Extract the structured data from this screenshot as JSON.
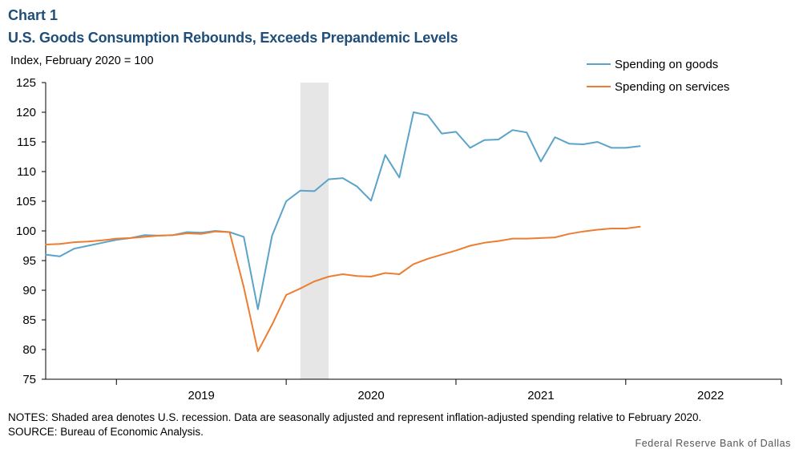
{
  "header": {
    "chart_label": "Chart 1",
    "title": "U.S. Goods Consumption Rebounds, Exceeds Prepandemic Levels"
  },
  "footer": {
    "notes": "NOTES: Shaded area denotes U.S. recession. Data are seasonally adjusted and represent inflation-adjusted spending relative to February 2020.",
    "source": "SOURCE: Bureau of Economic Analysis.",
    "credit": "Federal Reserve Bank of Dallas"
  },
  "chart_data": {
    "type": "line",
    "ylabel": "Index,  February 2020 = 100",
    "ylim": [
      75,
      125
    ],
    "yticks": [
      75,
      80,
      85,
      90,
      95,
      100,
      105,
      110,
      115,
      120,
      125
    ],
    "x_start": "2018-08",
    "x_end": "2022-12",
    "year_labels": [
      "2019",
      "2020",
      "2021",
      "2022"
    ],
    "grid": false,
    "legend_position": "top-right",
    "recession": {
      "start": "2020-02",
      "end": "2020-04"
    },
    "colors": {
      "goods": "#5ba3c9",
      "services": "#ed7d31",
      "recession": "#e6e6e6"
    },
    "series": [
      {
        "key": "goods",
        "name": "Spending on goods",
        "values": [
          96.0,
          95.7,
          97.0,
          97.5,
          98.0,
          98.5,
          98.8,
          99.3,
          99.2,
          99.3,
          99.8,
          99.7,
          100.0,
          99.8,
          99.0,
          86.8,
          99.2,
          105.0,
          106.8,
          106.7,
          108.7,
          108.9,
          107.5,
          105.1,
          112.8,
          109.0,
          120.0,
          119.5,
          116.4,
          116.7,
          114.0,
          115.3,
          115.4,
          117.0,
          116.6,
          111.7,
          115.8,
          114.7,
          114.6,
          115.0,
          114.0,
          114.0,
          114.3
        ]
      },
      {
        "key": "services",
        "name": "Spending on services",
        "values": [
          97.7,
          97.8,
          98.1,
          98.2,
          98.4,
          98.7,
          98.8,
          99.0,
          99.2,
          99.3,
          99.6,
          99.5,
          99.9,
          99.8,
          90.5,
          79.7,
          84.2,
          89.2,
          90.3,
          91.5,
          92.3,
          92.7,
          92.4,
          92.3,
          92.9,
          92.7,
          94.4,
          95.3,
          96.0,
          96.7,
          97.5,
          98.0,
          98.3,
          98.7,
          98.7,
          98.8,
          98.9,
          99.5,
          99.9,
          100.2,
          100.4,
          100.4,
          100.7
        ]
      }
    ]
  }
}
